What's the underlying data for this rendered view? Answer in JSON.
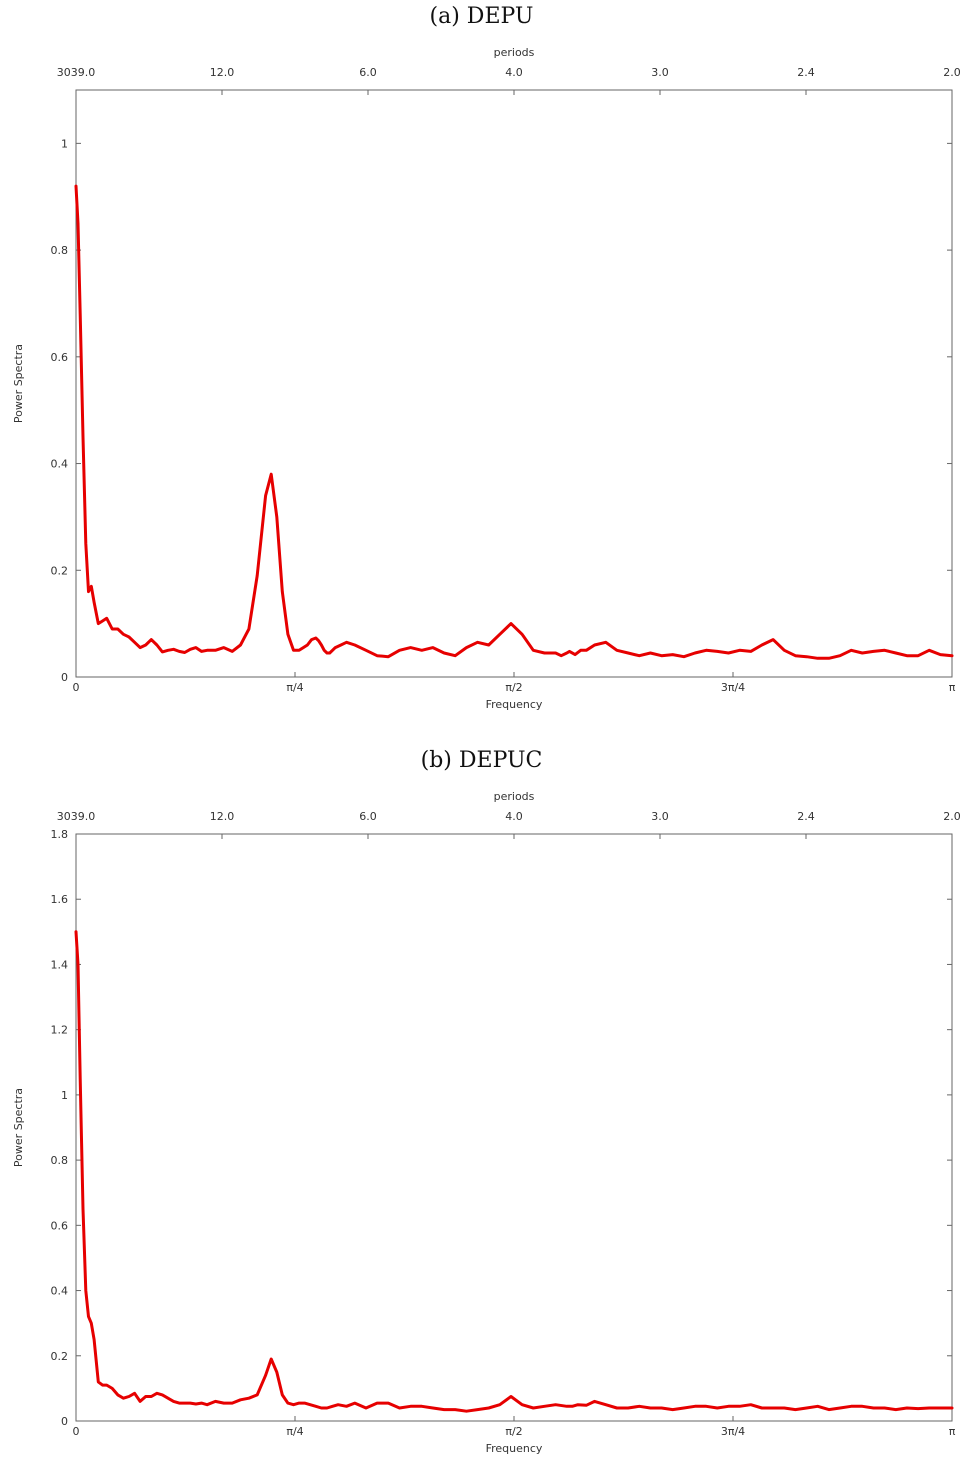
{
  "chart_data": [
    {
      "type": "line",
      "title": "(a) DEPU",
      "xlabel": "Frequency",
      "ylabel": "Power Spectra",
      "x2label": "periods",
      "xlim": [
        0,
        3.14159
      ],
      "ylim": [
        0,
        1.1
      ],
      "xticks": [
        {
          "value": 0,
          "label": "0"
        },
        {
          "value": 0.7854,
          "label": "π/4"
        },
        {
          "value": 1.5708,
          "label": "π/2"
        },
        {
          "value": 2.3562,
          "label": "3π/4"
        },
        {
          "value": 3.14159,
          "label": "π"
        }
      ],
      "x2ticks": [
        {
          "value": 0,
          "label": "3039.0"
        },
        {
          "value": 0.5236,
          "label": "12.0"
        },
        {
          "value": 1.0472,
          "label": "6.0"
        },
        {
          "value": 1.5708,
          "label": "4.0"
        },
        {
          "value": 2.0944,
          "label": "3.0"
        },
        {
          "value": 2.618,
          "label": "2.4"
        },
        {
          "value": 3.14159,
          "label": "2.0"
        }
      ],
      "yticks": [
        {
          "value": 0,
          "label": "0"
        },
        {
          "value": 0.2,
          "label": "0.2"
        },
        {
          "value": 0.4,
          "label": "0.4"
        },
        {
          "value": 0.6,
          "label": "0.6"
        },
        {
          "value": 0.8,
          "label": "0.8"
        },
        {
          "value": 1.0,
          "label": "1"
        }
      ],
      "color": "#e60000",
      "series": [
        {
          "x": [
            0,
            0.007,
            0.015,
            0.025,
            0.035,
            0.045,
            0.055,
            0.065,
            0.08,
            0.095,
            0.11,
            0.13,
            0.15,
            0.17,
            0.19,
            0.21,
            0.23,
            0.25,
            0.27,
            0.29,
            0.31,
            0.33,
            0.35,
            0.37,
            0.39,
            0.41,
            0.43,
            0.45,
            0.47,
            0.5,
            0.53,
            0.56,
            0.59,
            0.62,
            0.65,
            0.68,
            0.7,
            0.72,
            0.74,
            0.76,
            0.78,
            0.8,
            0.815,
            0.83,
            0.845,
            0.86,
            0.87,
            0.88,
            0.89,
            0.9,
            0.91,
            0.92,
            0.93,
            0.95,
            0.97,
            1.0,
            1.04,
            1.08,
            1.12,
            1.16,
            1.2,
            1.24,
            1.28,
            1.32,
            1.36,
            1.4,
            1.44,
            1.48,
            1.52,
            1.56,
            1.6,
            1.64,
            1.68,
            1.72,
            1.74,
            1.76,
            1.77,
            1.79,
            1.81,
            1.83,
            1.86,
            1.9,
            1.94,
            1.98,
            2.02,
            2.06,
            2.1,
            2.14,
            2.18,
            2.22,
            2.26,
            2.3,
            2.34,
            2.38,
            2.42,
            2.46,
            2.5,
            2.54,
            2.58,
            2.62,
            2.66,
            2.7,
            2.74,
            2.78,
            2.82,
            2.86,
            2.9,
            2.94,
            2.98,
            3.02,
            3.06,
            3.1,
            3.14159
          ],
          "y": [
            0.92,
            0.85,
            0.68,
            0.45,
            0.25,
            0.16,
            0.17,
            0.14,
            0.1,
            0.105,
            0.11,
            0.09,
            0.09,
            0.08,
            0.075,
            0.065,
            0.055,
            0.06,
            0.07,
            0.06,
            0.047,
            0.05,
            0.052,
            0.048,
            0.046,
            0.052,
            0.055,
            0.048,
            0.05,
            0.05,
            0.055,
            0.048,
            0.06,
            0.09,
            0.19,
            0.34,
            0.38,
            0.3,
            0.16,
            0.08,
            0.05,
            0.05,
            0.055,
            0.06,
            0.07,
            0.073,
            0.068,
            0.06,
            0.05,
            0.045,
            0.045,
            0.05,
            0.055,
            0.06,
            0.065,
            0.06,
            0.05,
            0.04,
            0.038,
            0.05,
            0.055,
            0.05,
            0.055,
            0.045,
            0.04,
            0.055,
            0.065,
            0.06,
            0.08,
            0.1,
            0.08,
            0.05,
            0.045,
            0.045,
            0.04,
            0.045,
            0.048,
            0.042,
            0.05,
            0.05,
            0.06,
            0.065,
            0.05,
            0.045,
            0.04,
            0.045,
            0.04,
            0.042,
            0.038,
            0.045,
            0.05,
            0.048,
            0.045,
            0.05,
            0.048,
            0.06,
            0.07,
            0.05,
            0.04,
            0.038,
            0.035,
            0.035,
            0.04,
            0.05,
            0.045,
            0.048,
            0.05,
            0.045,
            0.04,
            0.04,
            0.05,
            0.042,
            0.04
          ]
        }
      ]
    },
    {
      "type": "line",
      "title": "(b) DEPUC",
      "xlabel": "Frequency",
      "ylabel": "Power Spectra",
      "x2label": "periods",
      "xlim": [
        0,
        3.14159
      ],
      "ylim": [
        0,
        1.8
      ],
      "xticks": [
        {
          "value": 0,
          "label": "0"
        },
        {
          "value": 0.7854,
          "label": "π/4"
        },
        {
          "value": 1.5708,
          "label": "π/2"
        },
        {
          "value": 2.3562,
          "label": "3π/4"
        },
        {
          "value": 3.14159,
          "label": "π"
        }
      ],
      "x2ticks": [
        {
          "value": 0,
          "label": "3039.0"
        },
        {
          "value": 0.5236,
          "label": "12.0"
        },
        {
          "value": 1.0472,
          "label": "6.0"
        },
        {
          "value": 1.5708,
          "label": "4.0"
        },
        {
          "value": 2.0944,
          "label": "3.0"
        },
        {
          "value": 2.618,
          "label": "2.4"
        },
        {
          "value": 3.14159,
          "label": "2.0"
        }
      ],
      "yticks": [
        {
          "value": 0,
          "label": "0"
        },
        {
          "value": 0.2,
          "label": "0.2"
        },
        {
          "value": 0.4,
          "label": "0.4"
        },
        {
          "value": 0.6,
          "label": "0.6"
        },
        {
          "value": 0.8,
          "label": "0.8"
        },
        {
          "value": 1.0,
          "label": "1"
        },
        {
          "value": 1.2,
          "label": "1.2"
        },
        {
          "value": 1.4,
          "label": "1.4"
        },
        {
          "value": 1.6,
          "label": "1.6"
        },
        {
          "value": 1.8,
          "label": "1.8"
        }
      ],
      "color": "#e60000",
      "series": [
        {
          "x": [
            0,
            0.007,
            0.015,
            0.025,
            0.035,
            0.045,
            0.055,
            0.065,
            0.08,
            0.095,
            0.11,
            0.13,
            0.15,
            0.17,
            0.19,
            0.21,
            0.23,
            0.25,
            0.27,
            0.29,
            0.31,
            0.33,
            0.35,
            0.37,
            0.39,
            0.41,
            0.43,
            0.45,
            0.47,
            0.5,
            0.53,
            0.56,
            0.59,
            0.62,
            0.65,
            0.68,
            0.7,
            0.72,
            0.74,
            0.76,
            0.78,
            0.8,
            0.82,
            0.84,
            0.86,
            0.88,
            0.9,
            0.92,
            0.94,
            0.97,
            1.0,
            1.04,
            1.08,
            1.12,
            1.16,
            1.2,
            1.24,
            1.28,
            1.32,
            1.36,
            1.4,
            1.44,
            1.48,
            1.52,
            1.56,
            1.6,
            1.64,
            1.68,
            1.72,
            1.76,
            1.78,
            1.8,
            1.83,
            1.86,
            1.9,
            1.94,
            1.98,
            2.02,
            2.06,
            2.1,
            2.14,
            2.18,
            2.22,
            2.26,
            2.3,
            2.34,
            2.38,
            2.42,
            2.46,
            2.5,
            2.54,
            2.58,
            2.62,
            2.66,
            2.7,
            2.74,
            2.78,
            2.82,
            2.86,
            2.9,
            2.94,
            2.98,
            3.02,
            3.06,
            3.1,
            3.14159
          ],
          "y": [
            1.5,
            1.4,
            1.05,
            0.65,
            0.4,
            0.32,
            0.3,
            0.25,
            0.12,
            0.11,
            0.11,
            0.1,
            0.08,
            0.07,
            0.075,
            0.085,
            0.06,
            0.075,
            0.075,
            0.085,
            0.08,
            0.07,
            0.06,
            0.055,
            0.055,
            0.055,
            0.052,
            0.055,
            0.05,
            0.06,
            0.055,
            0.055,
            0.065,
            0.07,
            0.08,
            0.14,
            0.19,
            0.15,
            0.08,
            0.055,
            0.05,
            0.055,
            0.055,
            0.05,
            0.045,
            0.04,
            0.04,
            0.045,
            0.05,
            0.045,
            0.055,
            0.04,
            0.055,
            0.055,
            0.04,
            0.045,
            0.045,
            0.04,
            0.035,
            0.035,
            0.03,
            0.035,
            0.04,
            0.05,
            0.075,
            0.05,
            0.04,
            0.045,
            0.05,
            0.045,
            0.045,
            0.05,
            0.048,
            0.06,
            0.05,
            0.04,
            0.04,
            0.045,
            0.04,
            0.04,
            0.035,
            0.04,
            0.045,
            0.045,
            0.04,
            0.045,
            0.045,
            0.05,
            0.04,
            0.04,
            0.04,
            0.035,
            0.04,
            0.045,
            0.035,
            0.04,
            0.045,
            0.045,
            0.04,
            0.04,
            0.035,
            0.04,
            0.038,
            0.04,
            0.04,
            0.04
          ]
        }
      ]
    }
  ]
}
